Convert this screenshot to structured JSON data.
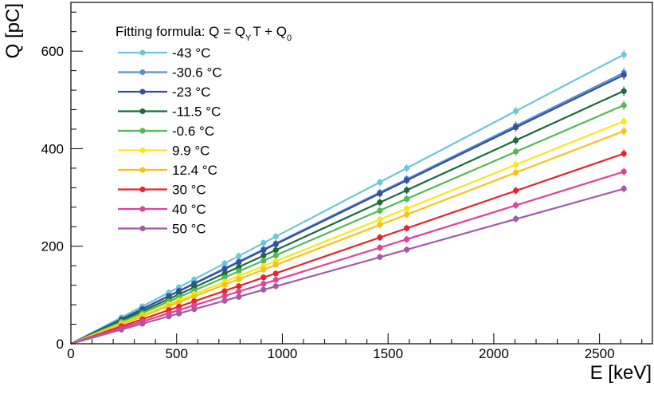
{
  "chart_data": {
    "type": "scatter",
    "title": "",
    "xlabel": "E [keV]",
    "ylabel": "Q [pC]",
    "xlim": [
      0,
      2750
    ],
    "ylim": [
      0,
      700
    ],
    "x_ticks": [
      0,
      500,
      1000,
      1500,
      2000,
      2500
    ],
    "y_ticks": [
      0,
      200,
      400,
      600
    ],
    "grid": false,
    "legend_title_parts": {
      "main": "Fitting formula: Q = Q",
      "sub1": "Y",
      "mid": "T + Q",
      "sub2": "0"
    },
    "legend_position": "top-left",
    "x": [
      239,
      338,
      463,
      511,
      583,
      727,
      794,
      911,
      969,
      1461,
      1588,
      2104,
      2615
    ],
    "series": [
      {
        "name": "-43 °C",
        "color": "#6cc6dc",
        "slope": 0.2268,
        "intercept": 0,
        "values": [
          54,
          77,
          105,
          116,
          132,
          165,
          180,
          207,
          220,
          331,
          360,
          477,
          593
        ]
      },
      {
        "name": "-30.6 °C",
        "color": "#5b8fd6",
        "slope": 0.2125,
        "intercept": 0,
        "values": [
          51,
          72,
          98,
          109,
          124,
          155,
          169,
          194,
          206,
          310,
          338,
          447,
          556
        ]
      },
      {
        "name": "-23 °C",
        "color": "#34509f",
        "slope": 0.2108,
        "intercept": 0,
        "values": [
          50,
          71,
          98,
          108,
          123,
          153,
          167,
          192,
          204,
          308,
          335,
          444,
          551
        ]
      },
      {
        "name": "-11.5 °C",
        "color": "#1e6b3a",
        "slope": 0.1983,
        "intercept": 0,
        "values": [
          47,
          67,
          92,
          101,
          116,
          144,
          157,
          181,
          192,
          290,
          315,
          417,
          518
        ]
      },
      {
        "name": "-0.6 °C",
        "color": "#53b953",
        "slope": 0.1871,
        "intercept": 0,
        "values": [
          45,
          63,
          87,
          96,
          109,
          136,
          149,
          170,
          181,
          273,
          297,
          394,
          489
        ]
      },
      {
        "name": "9.9 °C",
        "color": "#f6e81c",
        "slope": 0.1745,
        "intercept": 0,
        "values": [
          42,
          59,
          81,
          89,
          102,
          127,
          139,
          159,
          169,
          255,
          277,
          367,
          456
        ]
      },
      {
        "name": "12.4 °C",
        "color": "#fbc11b",
        "slope": 0.1668,
        "intercept": 0,
        "values": [
          40,
          56,
          77,
          85,
          97,
          121,
          132,
          152,
          162,
          244,
          265,
          351,
          436
        ]
      },
      {
        "name": "30 °C",
        "color": "#e8232a",
        "slope": 0.1491,
        "intercept": 0,
        "values": [
          36,
          50,
          69,
          76,
          87,
          108,
          118,
          136,
          144,
          218,
          237,
          314,
          390
        ]
      },
      {
        "name": "40 °C",
        "color": "#e2409a",
        "slope": 0.1349,
        "intercept": 0,
        "values": [
          32,
          46,
          62,
          69,
          79,
          98,
          107,
          123,
          131,
          197,
          214,
          284,
          353
        ]
      },
      {
        "name": "50 °C",
        "color": "#a35ba6",
        "slope": 0.1215,
        "intercept": 0,
        "values": [
          29,
          41,
          56,
          62,
          71,
          88,
          96,
          111,
          118,
          178,
          193,
          256,
          318
        ]
      }
    ]
  }
}
